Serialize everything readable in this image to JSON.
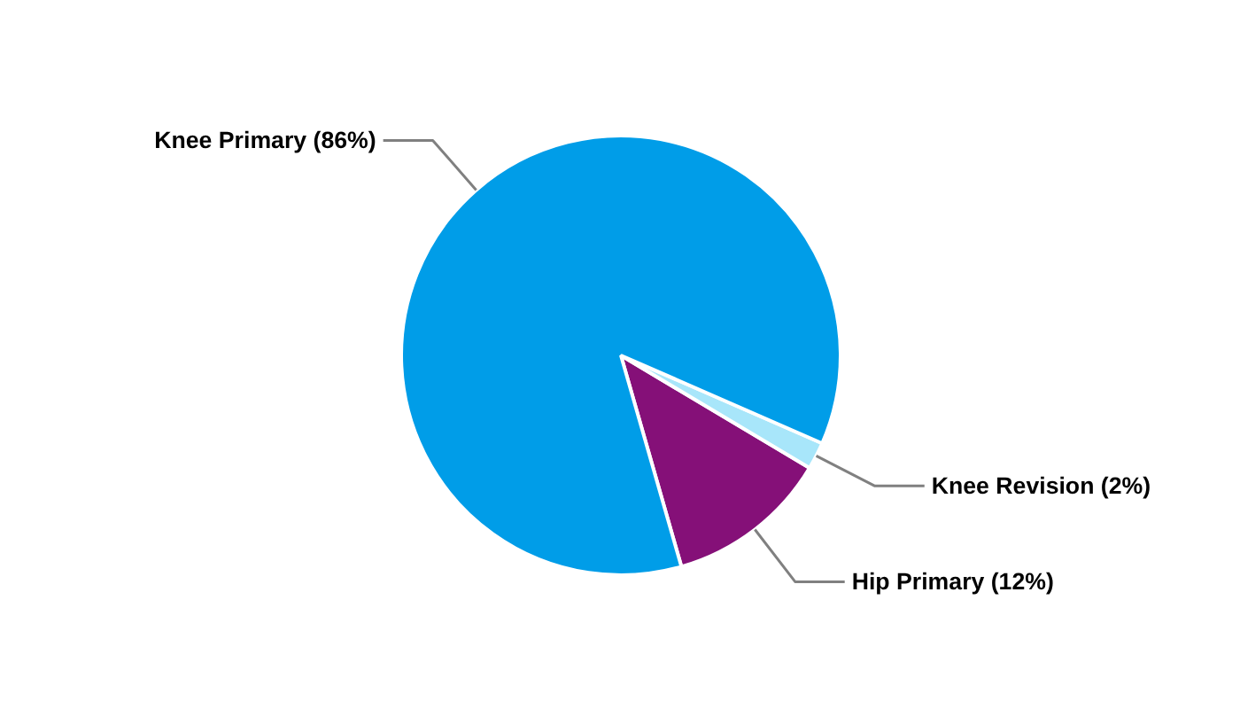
{
  "chart_data": {
    "type": "pie",
    "categories": [
      "Hip Primary (12%)",
      "Knee Revision (2%)",
      "Knee Primary (86%)"
    ],
    "values": [
      12,
      2,
      86
    ],
    "colors": [
      "#851078",
      "#a8e6fa",
      "#009de8"
    ]
  }
}
